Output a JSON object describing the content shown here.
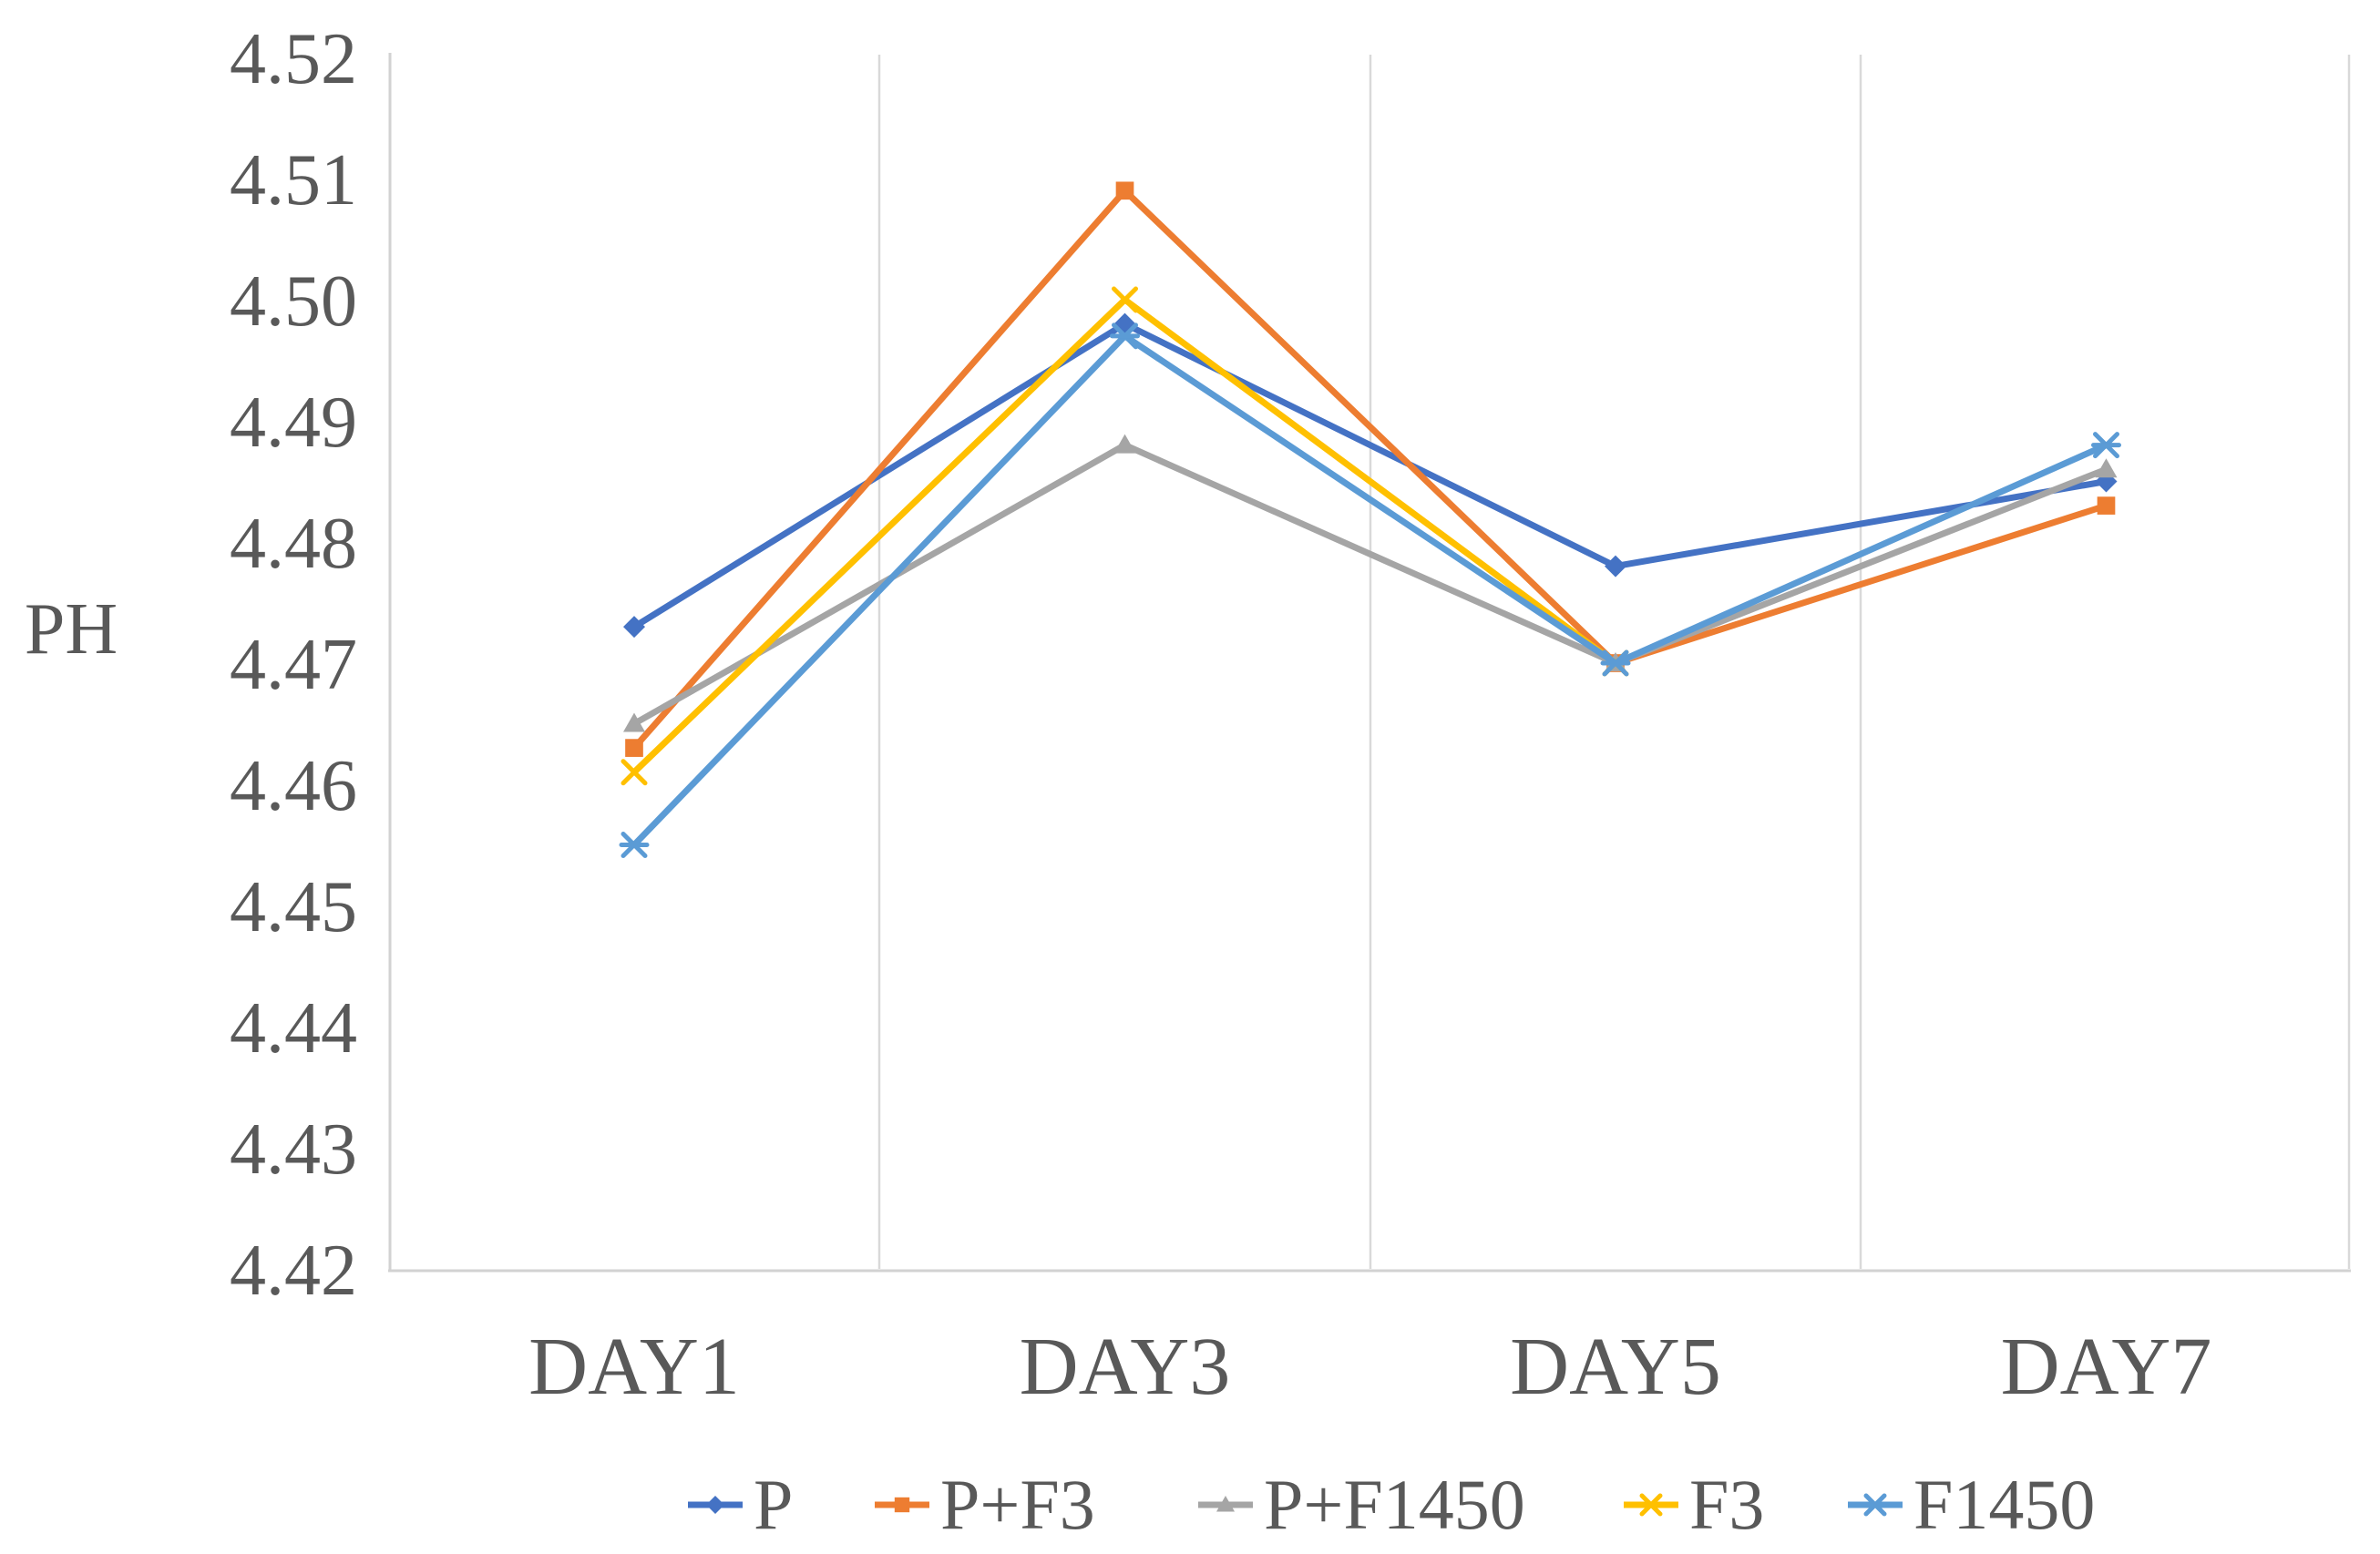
{
  "figure": {
    "background_color": "#ffffff",
    "text_color": "#595959",
    "gridline_color": "#d9d9d9",
    "axis_line_color": "#d2d2d2"
  },
  "chart_data": {
    "type": "line",
    "title": "",
    "xlabel": "",
    "ylabel": "PH",
    "categories": [
      "DAY1",
      "DAY3",
      "DAY5",
      "DAY7"
    ],
    "ylim": [
      4.42,
      4.52
    ],
    "ytick_step": 0.01,
    "ytick_labels": [
      "4.52",
      "4.51",
      "4.50",
      "4.49",
      "4.48",
      "4.47",
      "4.46",
      "4.45",
      "4.44",
      "4.43",
      "4.42"
    ],
    "grid": "vertical-gridlines-only",
    "legend_position": "bottom",
    "series": [
      {
        "name": "P",
        "color": "#4472C4",
        "marker": "diamond",
        "values": [
          4.473,
          4.498,
          4.478,
          4.485
        ]
      },
      {
        "name": "P+F3",
        "color": "#ED7D31",
        "marker": "square",
        "values": [
          4.463,
          4.509,
          4.47,
          4.483
        ]
      },
      {
        "name": "P+F1450",
        "color": "#A5A5A5",
        "marker": "triangle",
        "values": [
          4.465,
          4.488,
          4.47,
          4.486
        ]
      },
      {
        "name": "F3",
        "color": "#FFC000",
        "marker": "x",
        "values": [
          4.461,
          4.5,
          4.47,
          null
        ]
      },
      {
        "name": "F1450",
        "color": "#5B9BD5",
        "marker": "asterisk",
        "values": [
          4.455,
          4.497,
          4.47,
          4.488
        ]
      }
    ]
  }
}
